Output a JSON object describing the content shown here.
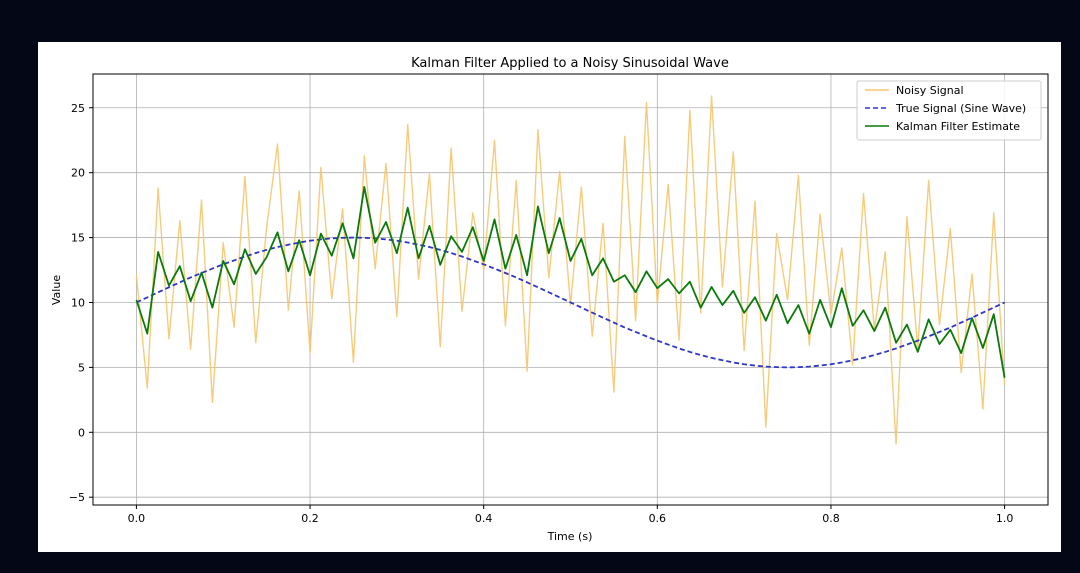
{
  "chart_data": {
    "type": "line",
    "title": "Kalman Filter Applied to a Noisy Sinusoidal Wave",
    "xlabel": "Time (s)",
    "ylabel": "Value",
    "xlim": [
      -0.05,
      1.05
    ],
    "ylim": [
      -5.6,
      27.6
    ],
    "x_ticks": [
      0.0,
      0.2,
      0.4,
      0.6,
      0.8,
      1.0
    ],
    "x_tick_labels": [
      "0.0",
      "0.2",
      "0.4",
      "0.6",
      "0.8",
      "1.0"
    ],
    "y_ticks": [
      -5,
      0,
      5,
      10,
      15,
      20,
      25
    ],
    "y_tick_labels": [
      "−5",
      "0",
      "5",
      "10",
      "15",
      "20",
      "25"
    ],
    "grid": true,
    "legend_position": "top-right",
    "x": [
      0.0,
      0.0125,
      0.025,
      0.0375,
      0.05,
      0.0625,
      0.075,
      0.0875,
      0.1,
      0.1125,
      0.125,
      0.1375,
      0.15,
      0.1625,
      0.175,
      0.1875,
      0.2,
      0.2125,
      0.225,
      0.2375,
      0.25,
      0.2625,
      0.275,
      0.2875,
      0.3,
      0.3125,
      0.325,
      0.3375,
      0.35,
      0.3625,
      0.375,
      0.3875,
      0.4,
      0.4125,
      0.425,
      0.4375,
      0.45,
      0.4625,
      0.475,
      0.4875,
      0.5,
      0.5125,
      0.525,
      0.5375,
      0.55,
      0.5625,
      0.575,
      0.5875,
      0.6,
      0.6125,
      0.625,
      0.6375,
      0.65,
      0.6625,
      0.675,
      0.6875,
      0.7,
      0.7125,
      0.725,
      0.7375,
      0.75,
      0.7625,
      0.775,
      0.7875,
      0.8,
      0.8125,
      0.825,
      0.8375,
      0.85,
      0.8625,
      0.875,
      0.8875,
      0.9,
      0.9125,
      0.925,
      0.9375,
      0.95,
      0.9625,
      0.975,
      0.9875,
      1.0
    ],
    "series": [
      {
        "name": "Noisy Signal",
        "color": "#f5c76e",
        "style": "solid",
        "values": [
          12.1,
          3.4,
          18.8,
          7.2,
          16.3,
          6.4,
          17.9,
          2.3,
          14.6,
          8.1,
          19.7,
          6.9,
          15.8,
          22.2,
          9.4,
          18.6,
          6.1,
          20.4,
          10.3,
          17.2,
          5.4,
          21.3,
          12.6,
          20.7,
          8.9,
          23.7,
          11.8,
          19.9,
          6.6,
          21.9,
          9.3,
          16.9,
          12.5,
          22.5,
          8.2,
          19.4,
          4.7,
          23.3,
          11.9,
          20.1,
          9.8,
          18.9,
          7.4,
          16.1,
          3.1,
          22.8,
          8.6,
          25.4,
          9.9,
          19.1,
          7.1,
          24.8,
          9.2,
          25.9,
          11.2,
          21.6,
          6.3,
          17.8,
          0.4,
          15.3,
          10.2,
          19.8,
          6.7,
          16.8,
          9.1,
          14.2,
          5.2,
          18.4,
          7.9,
          13.9,
          -0.9,
          16.6,
          6.4,
          19.4,
          8.3,
          15.7,
          4.6,
          12.2,
          1.8,
          16.9,
          3.6
        ]
      },
      {
        "name": "True Signal (Sine Wave)",
        "color": "#2e35c9",
        "style": "dashed",
        "values": [
          10.0,
          10.39,
          10.78,
          11.17,
          11.55,
          11.93,
          12.27,
          12.61,
          12.94,
          13.24,
          13.54,
          13.81,
          14.05,
          14.27,
          14.45,
          14.62,
          14.76,
          14.86,
          14.94,
          14.98,
          15.0,
          14.98,
          14.94,
          14.86,
          14.76,
          14.62,
          14.45,
          14.27,
          14.05,
          13.81,
          13.54,
          13.24,
          12.94,
          12.61,
          12.27,
          11.93,
          11.55,
          11.17,
          10.78,
          10.39,
          10.0,
          9.61,
          9.22,
          8.83,
          8.45,
          8.07,
          7.73,
          7.39,
          7.06,
          6.76,
          6.46,
          6.19,
          5.95,
          5.73,
          5.55,
          5.38,
          5.24,
          5.14,
          5.06,
          5.02,
          5.0,
          5.02,
          5.06,
          5.14,
          5.24,
          5.38,
          5.55,
          5.73,
          5.95,
          6.19,
          6.46,
          6.76,
          7.06,
          7.39,
          7.73,
          8.07,
          8.45,
          8.83,
          9.22,
          9.61,
          10.0
        ]
      },
      {
        "name": "Kalman Filter Estimate",
        "color": "#0a7a0a",
        "style": "solid",
        "values": [
          10.2,
          7.6,
          13.9,
          11.3,
          12.8,
          10.1,
          12.3,
          9.6,
          13.2,
          11.4,
          14.1,
          12.2,
          13.5,
          15.4,
          12.4,
          14.8,
          12.1,
          15.3,
          13.6,
          16.1,
          13.4,
          18.9,
          14.6,
          16.2,
          13.8,
          17.3,
          13.4,
          15.9,
          12.9,
          15.1,
          13.9,
          15.8,
          13.2,
          16.4,
          12.6,
          15.2,
          12.1,
          17.4,
          13.8,
          16.5,
          13.2,
          14.9,
          12.1,
          13.4,
          11.6,
          12.1,
          10.8,
          12.4,
          11.1,
          11.8,
          10.7,
          11.6,
          9.6,
          11.2,
          9.8,
          10.9,
          9.2,
          10.4,
          8.6,
          10.6,
          8.4,
          9.8,
          7.6,
          10.2,
          8.1,
          11.1,
          8.2,
          9.4,
          7.8,
          9.6,
          6.9,
          8.3,
          6.2,
          8.7,
          6.8,
          7.9,
          6.1,
          8.8,
          6.5,
          9.1,
          4.2
        ]
      }
    ]
  }
}
